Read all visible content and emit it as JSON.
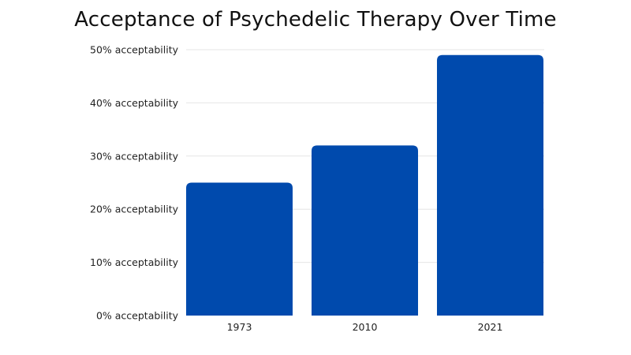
{
  "chart_data": {
    "type": "bar",
    "title": "Acceptance of Psychedelic Therapy Over Time",
    "categories": [
      "1973",
      "2010",
      "2021"
    ],
    "values": [
      25,
      32,
      49
    ],
    "y_ticks": [
      0,
      10,
      20,
      30,
      40,
      50
    ],
    "y_tick_labels": [
      "0% acceptability",
      "10% acceptability",
      "20% acceptability",
      "30% acceptability",
      "40% acceptability",
      "50% acceptability"
    ],
    "ylim": [
      0,
      50
    ],
    "grid": true,
    "bar_color": "#004aad",
    "xlabel": "",
    "ylabel": ""
  }
}
